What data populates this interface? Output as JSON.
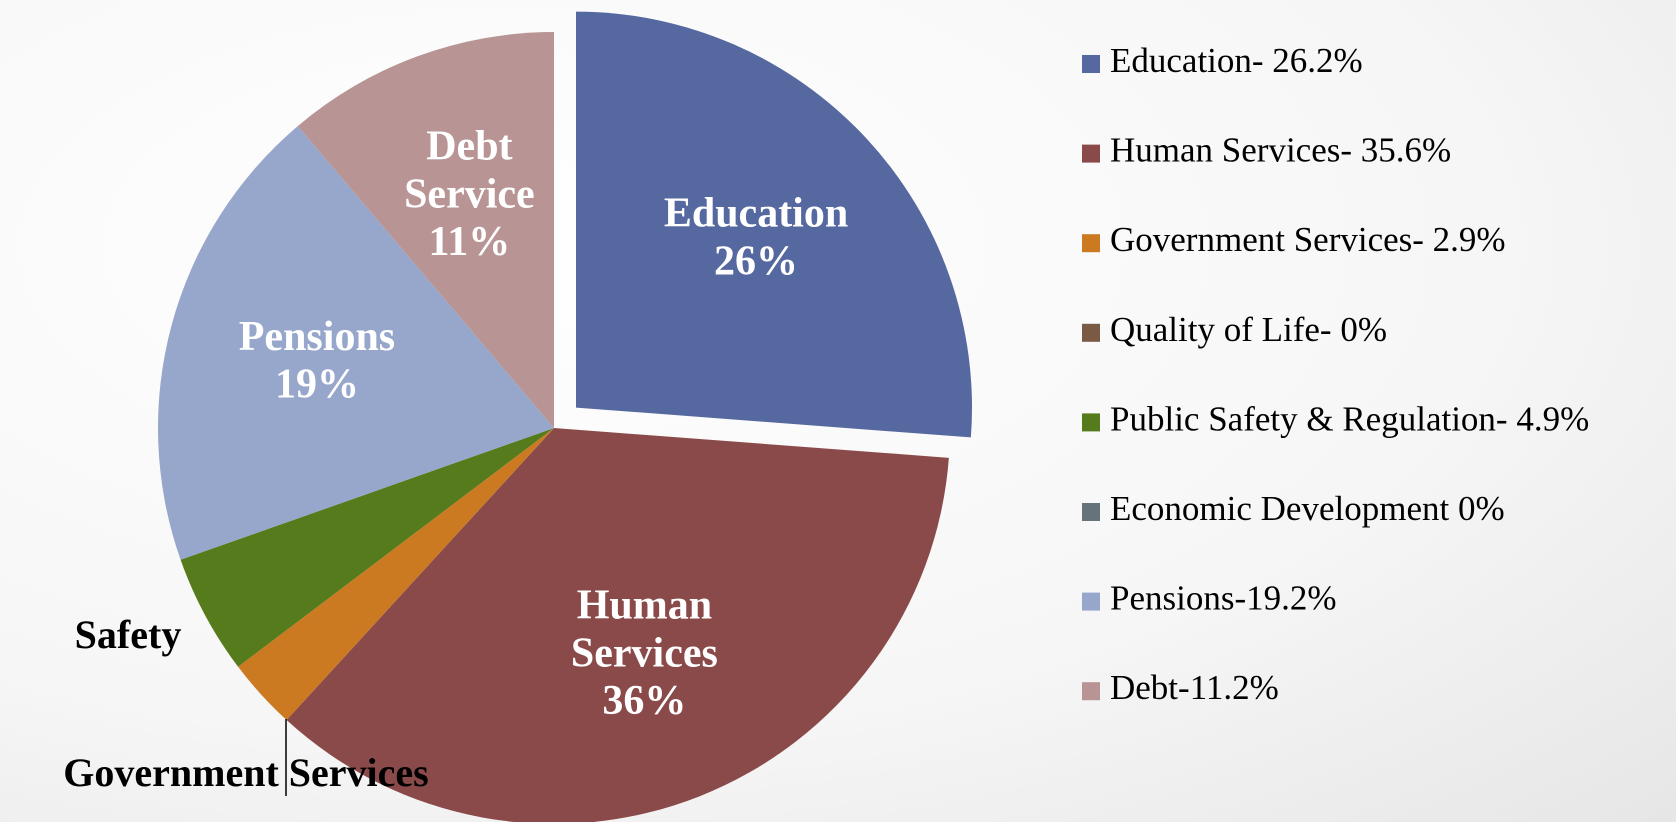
{
  "chart_data": {
    "type": "pie",
    "categories": [
      "Education-  26.2%",
      "Human Services-  35.6%",
      "Government Services- 2.9%",
      "Quality of Life- 0%",
      "Public Safety & Regulation-  4.9%",
      "Economic Development 0%",
      "Pensions-19.2%",
      "Debt-11.2%"
    ],
    "values": [
      26.2,
      35.6,
      2.9,
      0,
      4.9,
      0,
      19.2,
      11.2
    ],
    "colors": [
      "#5668a0",
      "#8b4a4a",
      "#cc7a22",
      "#7a5a44",
      "#567b1c",
      "#66737a",
      "#97a6cb",
      "#b89594"
    ],
    "slice_labels": [
      "Education",
      "Human Services",
      "Government Services",
      null,
      "Safety",
      null,
      "Pensions",
      "Debt Service"
    ],
    "value_labels": [
      "26%",
      "36%",
      null,
      null,
      null,
      null,
      "19%",
      "11%"
    ],
    "exploded": [
      0
    ],
    "legend": "right"
  }
}
